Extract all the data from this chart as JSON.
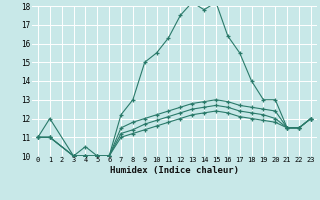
{
  "title": "",
  "xlabel": "Humidex (Indice chaleur)",
  "background_color": "#c8e8e8",
  "grid_color": "#ffffff",
  "line_color": "#2a7a6a",
  "x_min": 0,
  "x_max": 23,
  "y_min": 10,
  "y_max": 18,
  "series": [
    {
      "x": [
        0,
        1,
        3,
        4,
        5,
        6,
        7,
        8,
        9,
        10,
        11,
        12,
        13,
        14,
        15,
        16,
        17,
        18,
        19,
        20,
        21,
        22,
        23
      ],
      "y": [
        11,
        12,
        10,
        10.5,
        10,
        10,
        12.2,
        13.0,
        15.0,
        15.5,
        16.3,
        17.5,
        18.2,
        17.8,
        18.2,
        16.4,
        15.5,
        14.0,
        13.0,
        13.0,
        11.5,
        11.5,
        12.0
      ]
    },
    {
      "x": [
        0,
        1,
        3,
        4,
        5,
        6,
        7,
        8,
        9,
        10,
        11,
        12,
        13,
        14,
        15,
        16,
        17,
        18,
        19,
        20,
        21,
        22,
        23
      ],
      "y": [
        11,
        11,
        10,
        10,
        10,
        10,
        11.5,
        11.8,
        12.0,
        12.2,
        12.4,
        12.6,
        12.8,
        12.9,
        13.0,
        12.9,
        12.7,
        12.6,
        12.5,
        12.4,
        11.5,
        11.5,
        12.0
      ]
    },
    {
      "x": [
        0,
        1,
        3,
        4,
        5,
        6,
        7,
        8,
        9,
        10,
        11,
        12,
        13,
        14,
        15,
        16,
        17,
        18,
        19,
        20,
        21,
        22,
        23
      ],
      "y": [
        11,
        11,
        10,
        10,
        10,
        10,
        11.2,
        11.4,
        11.7,
        11.9,
        12.1,
        12.3,
        12.5,
        12.6,
        12.7,
        12.6,
        12.4,
        12.3,
        12.2,
        12.0,
        11.5,
        11.5,
        12.0
      ]
    },
    {
      "x": [
        0,
        1,
        3,
        4,
        5,
        6,
        7,
        8,
        9,
        10,
        11,
        12,
        13,
        14,
        15,
        16,
        17,
        18,
        19,
        20,
        21,
        22,
        23
      ],
      "y": [
        11,
        11,
        10,
        10,
        10,
        10,
        11.0,
        11.2,
        11.4,
        11.6,
        11.8,
        12.0,
        12.2,
        12.3,
        12.4,
        12.3,
        12.1,
        12.0,
        11.9,
        11.8,
        11.5,
        11.5,
        12.0
      ]
    }
  ]
}
